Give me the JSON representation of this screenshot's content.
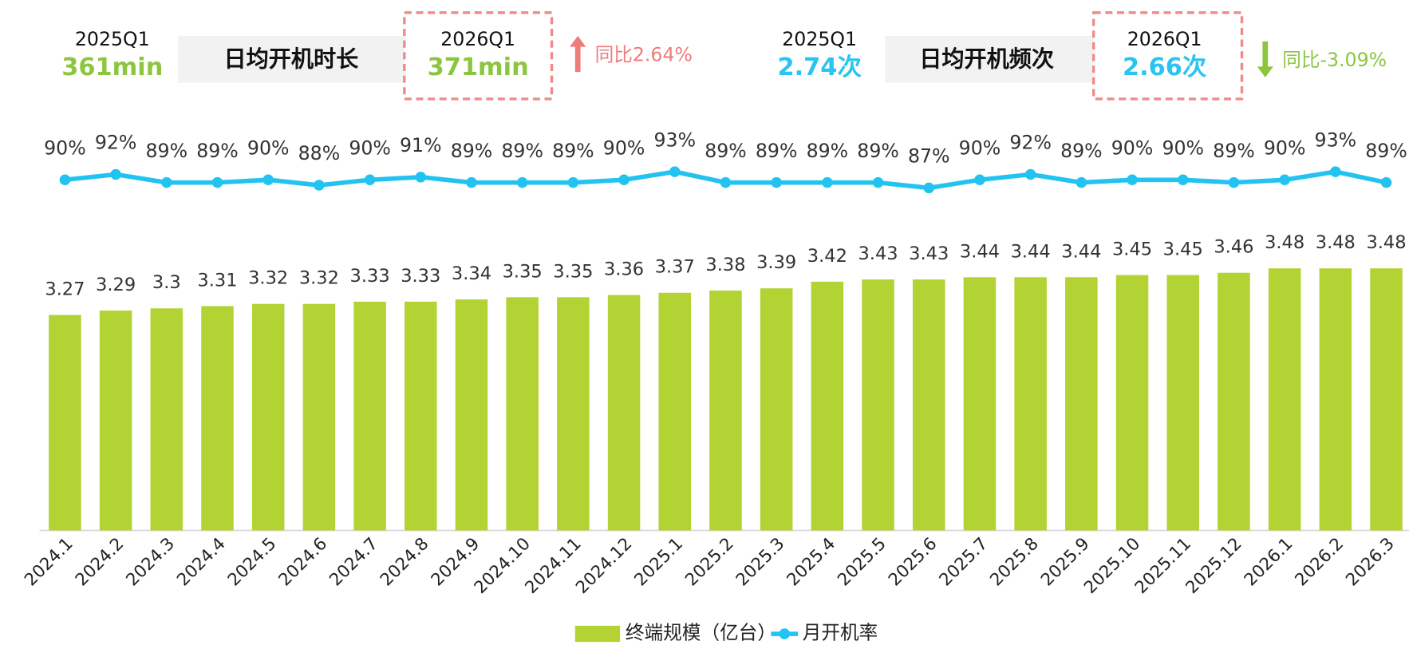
{
  "header": {
    "panels": [
      {
        "label": "日均开机时长",
        "prev_period": "2025Q1",
        "prev_value": "361min",
        "curr_period": "2026Q1",
        "curr_value": "371min",
        "change": "同比2.64%"
      },
      {
        "label": "日均开机频次",
        "prev_period": "2025Q1",
        "prev_value": "2.74次",
        "curr_period": "2026Q1",
        "curr_value": "2.66次",
        "change": "同比-3.09%"
      }
    ]
  },
  "chart_data": {
    "type": "bar",
    "categories": [
      "2024.1",
      "2024.2",
      "2024.3",
      "2024.4",
      "2024.5",
      "2024.6",
      "2024.7",
      "2024.8",
      "2024.9",
      "2024.10",
      "2024.11",
      "2024.12",
      "2025.1",
      "2025.2",
      "2025.3",
      "2025.4",
      "2025.5",
      "2025.6",
      "2025.7",
      "2025.8",
      "2025.9",
      "2025.10",
      "2025.11",
      "2025.12",
      "2026.1",
      "2026.2",
      "2026.3"
    ],
    "series": [
      {
        "name": "终端规模（亿台）",
        "type": "bar",
        "color": "#b3d334",
        "values": [
          3.27,
          3.29,
          3.3,
          3.31,
          3.32,
          3.32,
          3.33,
          3.33,
          3.34,
          3.35,
          3.35,
          3.36,
          3.37,
          3.38,
          3.39,
          3.42,
          3.43,
          3.43,
          3.44,
          3.44,
          3.44,
          3.45,
          3.45,
          3.46,
          3.48,
          3.48,
          3.48
        ]
      },
      {
        "name": "月开机率",
        "type": "line",
        "axis": "y2",
        "color": "#22c3f0",
        "values": [
          90,
          92,
          89,
          89,
          90,
          88,
          90,
          91,
          89,
          89,
          89,
          90,
          93,
          89,
          89,
          89,
          89,
          87,
          90,
          92,
          89,
          90,
          90,
          89,
          90,
          93,
          89
        ],
        "value_labels": [
          "90%",
          "92%",
          "89%",
          "89%",
          "90%",
          "88%",
          "90%",
          "91%",
          "89%",
          "89%",
          "89%",
          "90%",
          "93%",
          "89%",
          "89%",
          "89%",
          "89%",
          "87%",
          "90%",
          "92%",
          "89%",
          "90%",
          "90%",
          "89%",
          "90%",
          "93%",
          "89%"
        ]
      }
    ],
    "ylim": [
      2.3,
      4.0
    ],
    "y2lim": [
      -40,
      100
    ],
    "legend": "bottom"
  }
}
